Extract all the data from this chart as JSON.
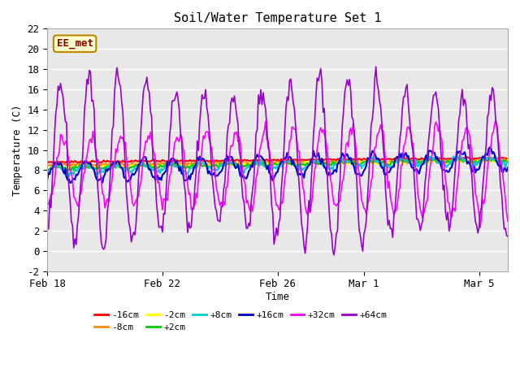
{
  "title": "Soil/Water Temperature Set 1",
  "xlabel": "Time",
  "ylabel": "Temperature (C)",
  "ylim": [
    -2,
    22
  ],
  "background_color": "#ffffff",
  "plot_bg_color": "#e8e8e8",
  "annotation_text": "EE_met",
  "annotation_bg": "#ffffcc",
  "annotation_border": "#bb8800",
  "grid_color": "#ffffff",
  "series": [
    {
      "label": "-16cm",
      "color": "#ff0000"
    },
    {
      "label": "-8cm",
      "color": "#ff8800"
    },
    {
      "label": "-2cm",
      "color": "#ffff00"
    },
    {
      "label": "+2cm",
      "color": "#00cc00"
    },
    {
      "label": "+8cm",
      "color": "#00cccc"
    },
    {
      "label": "+16cm",
      "color": "#0000cc"
    },
    {
      "label": "+32cm",
      "color": "#ff00ff"
    },
    {
      "label": "+64cm",
      "color": "#9900cc"
    }
  ],
  "x_tick_labels": [
    "Feb 18",
    "Feb 22",
    "Feb 26",
    "Mar 1",
    "Mar 5"
  ],
  "x_tick_positions": [
    0,
    4,
    8,
    11,
    15
  ],
  "figsize": [
    6.4,
    4.8
  ],
  "dpi": 100
}
